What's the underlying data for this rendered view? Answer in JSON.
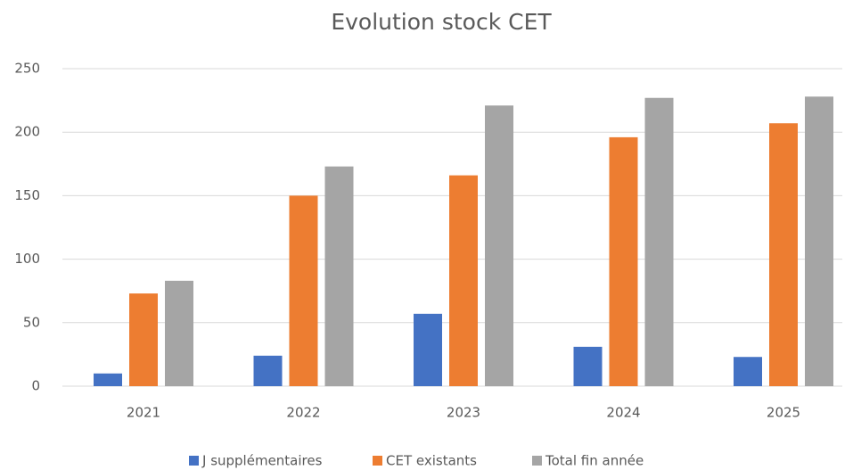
{
  "chart_data": {
    "type": "bar",
    "title": "Evolution stock CET",
    "categories": [
      "2021",
      "2022",
      "2023",
      "2024",
      "2025"
    ],
    "series": [
      {
        "name": "J supplémentaires",
        "color": "#4472c4",
        "values": [
          10,
          24,
          57,
          31,
          23
        ]
      },
      {
        "name": "CET existants",
        "color": "#ed7d31",
        "values": [
          73,
          150,
          166,
          196,
          207
        ]
      },
      {
        "name": "Total fin année",
        "color": "#a5a5a5",
        "values": [
          83,
          173,
          221,
          227,
          228
        ]
      }
    ],
    "ylim": [
      0,
      250
    ],
    "yticks": [
      0,
      50,
      100,
      150,
      200,
      250
    ],
    "grid": true,
    "legend": "bottom"
  }
}
